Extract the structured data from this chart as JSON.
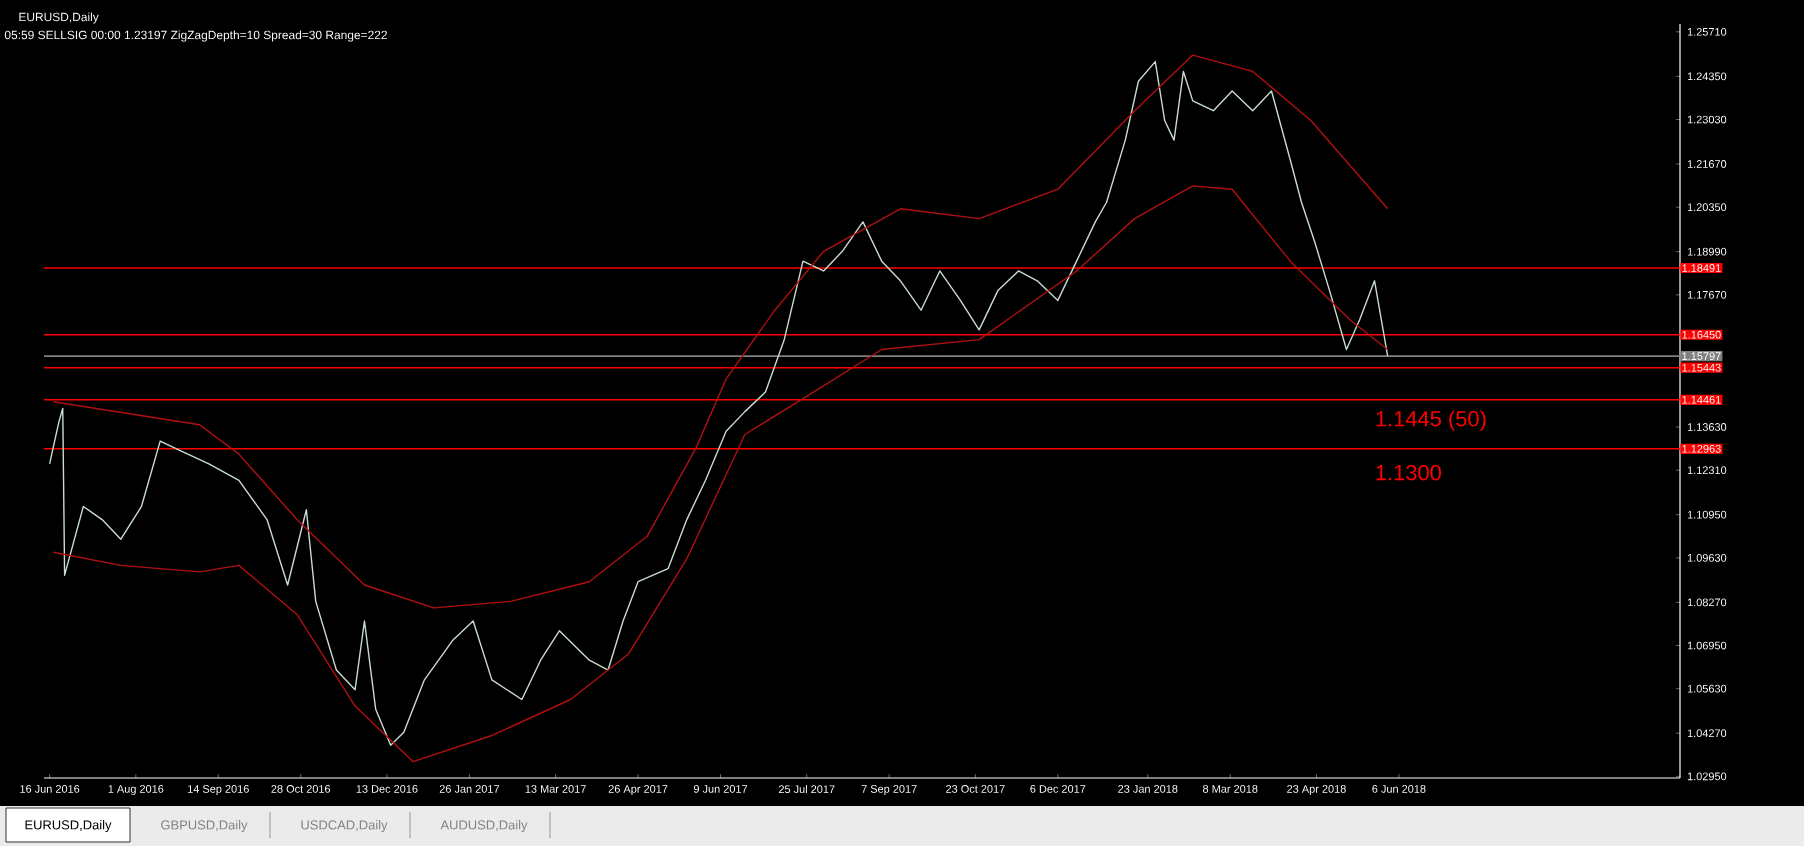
{
  "chart_data": {
    "type": "line",
    "title": "EURUSD,Daily",
    "subtitle": "05:59  SELLSIG  00:00  1.23197  ZigZagDepth=10  Spread=30  Range=222",
    "series": [
      {
        "color": "#c8dccf",
        "x": [
          "2016-06-16",
          "2016-06-21",
          "2016-06-23",
          "2016-06-24",
          "2016-07-04",
          "2016-07-14",
          "2016-07-24",
          "2016-08-04",
          "2016-08-14",
          "2016-08-25",
          "2016-09-09",
          "2016-09-25",
          "2016-10-10",
          "2016-10-21",
          "2016-10-31",
          "2016-11-05",
          "2016-11-16",
          "2016-11-26",
          "2016-12-01",
          "2016-12-07",
          "2016-12-15",
          "2016-12-22",
          "2017-01-02",
          "2017-01-17",
          "2017-01-28",
          "2017-02-07",
          "2017-02-23",
          "2017-03-05",
          "2017-03-15",
          "2017-03-31",
          "2017-04-10",
          "2017-04-18",
          "2017-04-26",
          "2017-05-12",
          "2017-05-22",
          "2017-06-01",
          "2017-06-12",
          "2017-06-22",
          "2017-07-03",
          "2017-07-13",
          "2017-07-23",
          "2017-08-03",
          "2017-08-13",
          "2017-08-24",
          "2017-09-03",
          "2017-09-13",
          "2017-09-24",
          "2017-10-04",
          "2017-10-15",
          "2017-10-25",
          "2017-11-04",
          "2017-11-15",
          "2017-11-25",
          "2017-12-06",
          "2017-12-16",
          "2017-12-26",
          "2018-01-01",
          "2018-01-11",
          "2018-01-18",
          "2018-01-27",
          "2018-02-01",
          "2018-02-06",
          "2018-02-11",
          "2018-02-16",
          "2018-02-27",
          "2018-03-09",
          "2018-03-20",
          "2018-03-30",
          "2018-04-09",
          "2018-04-15",
          "2018-04-22",
          "2018-04-30",
          "2018-05-09",
          "2018-05-16",
          "2018-05-24",
          "2018-05-31"
        ],
        "values": [
          1.125,
          1.138,
          1.142,
          1.091,
          1.112,
          1.108,
          1.102,
          1.112,
          1.132,
          1.129,
          1.125,
          1.12,
          1.108,
          1.088,
          1.111,
          1.083,
          1.062,
          1.056,
          1.077,
          1.05,
          1.039,
          1.043,
          1.059,
          1.071,
          1.077,
          1.059,
          1.053,
          1.065,
          1.074,
          1.065,
          1.062,
          1.077,
          1.089,
          1.093,
          1.108,
          1.12,
          1.135,
          1.141,
          1.147,
          1.163,
          1.187,
          1.184,
          1.19,
          1.199,
          1.187,
          1.181,
          1.172,
          1.184,
          1.175,
          1.166,
          1.178,
          1.184,
          1.181,
          1.175,
          1.187,
          1.199,
          1.205,
          1.224,
          1.242,
          1.248,
          1.23,
          1.224,
          1.245,
          1.236,
          1.233,
          1.239,
          1.233,
          1.239,
          1.218,
          1.205,
          1.193,
          1.178,
          1.16,
          1.169,
          1.181,
          1.158
        ]
      },
      {
        "color": "#b01010",
        "x": [
          "2016-06-18",
          "2016-09-04",
          "2016-09-25",
          "2016-10-26",
          "2016-12-01",
          "2017-01-07",
          "2017-02-17",
          "2017-03-31",
          "2017-05-01",
          "2017-05-27",
          "2017-06-12",
          "2017-07-08",
          "2017-08-03",
          "2017-09-13",
          "2017-10-25",
          "2017-12-06",
          "2018-01-16",
          "2018-02-16",
          "2018-03-20",
          "2018-04-20",
          "2018-05-31"
        ],
        "values": [
          1.144,
          1.137,
          1.128,
          1.108,
          1.088,
          1.081,
          1.083,
          1.089,
          1.103,
          1.13,
          1.151,
          1.172,
          1.19,
          1.203,
          1.2,
          1.209,
          1.233,
          1.25,
          1.245,
          1.23,
          1.203
        ]
      },
      {
        "color": "#b01010",
        "x": [
          "2016-06-18",
          "2016-07-24",
          "2016-09-04",
          "2016-09-25",
          "2016-10-26",
          "2016-11-26",
          "2016-12-27",
          "2017-02-07",
          "2017-03-21",
          "2017-04-21",
          "2017-05-22",
          "2017-06-22",
          "2017-07-23",
          "2017-09-03",
          "2017-10-25",
          "2017-12-16",
          "2018-01-16",
          "2018-02-16",
          "2018-03-09",
          "2018-04-09",
          "2018-05-11",
          "2018-05-31"
        ],
        "values": [
          1.098,
          1.094,
          1.092,
          1.094,
          1.079,
          1.051,
          1.034,
          1.042,
          1.053,
          1.067,
          1.096,
          1.134,
          1.145,
          1.16,
          1.163,
          1.184,
          1.2,
          1.21,
          1.209,
          1.187,
          1.169,
          1.16
        ]
      }
    ],
    "xlim": [
      "2016-06-13",
      "2018-11-03"
    ],
    "xticks": [
      {
        "value": "2016-06-16",
        "label": "16 Jun 2016"
      },
      {
        "value": "2016-08-01",
        "label": "1 Aug 2016"
      },
      {
        "value": "2016-09-14",
        "label": "14 Sep 2016"
      },
      {
        "value": "2016-10-28",
        "label": "28 Oct 2016"
      },
      {
        "value": "2016-12-13",
        "label": "13 Dec 2016"
      },
      {
        "value": "2017-01-26",
        "label": "26 Jan 2017"
      },
      {
        "value": "2017-03-13",
        "label": "13 Mar 2017"
      },
      {
        "value": "2017-04-26",
        "label": "26 Apr 2017"
      },
      {
        "value": "2017-06-09",
        "label": "9 Jun 2017"
      },
      {
        "value": "2017-07-25",
        "label": "25 Jul 2017"
      },
      {
        "value": "2017-09-07",
        "label": "7 Sep 2017"
      },
      {
        "value": "2017-10-23",
        "label": "23 Oct 2017"
      },
      {
        "value": "2017-12-06",
        "label": "6 Dec 2017"
      },
      {
        "value": "2018-01-23",
        "label": "23 Jan 2018"
      },
      {
        "value": "2018-03-08",
        "label": "8 Mar 2018"
      },
      {
        "value": "2018-04-23",
        "label": "23 Apr 2018"
      },
      {
        "value": "2018-06-06",
        "label": "6 Jun 2018"
      }
    ],
    "ylim": [
      1.029,
      1.2595
    ],
    "yticks": [
      {
        "value": 1.2571,
        "label": "1.25710"
      },
      {
        "value": 1.2435,
        "label": "1.24350"
      },
      {
        "value": 1.2303,
        "label": "1.23030"
      },
      {
        "value": 1.2167,
        "label": "1.21670"
      },
      {
        "value": 1.2035,
        "label": "1.20350"
      },
      {
        "value": 1.1899,
        "label": "1.18990"
      },
      {
        "value": 1.1767,
        "label": "1.17670"
      },
      {
        "value": 1.1363,
        "label": "1.13630"
      },
      {
        "value": 1.1231,
        "label": "1.12310"
      },
      {
        "value": 1.1095,
        "label": "1.10950"
      },
      {
        "value": 1.0963,
        "label": "1.09630"
      },
      {
        "value": 1.0827,
        "label": "1.08270"
      },
      {
        "value": 1.0695,
        "label": "1.06950"
      },
      {
        "value": 1.0563,
        "label": "1.05630"
      },
      {
        "value": 1.0427,
        "label": "1.04270"
      },
      {
        "value": 1.0295,
        "label": "1.02950"
      }
    ],
    "ref_lines": [
      {
        "axis": "y",
        "value": 1.18491,
        "label": "1.18491",
        "color": "#ff0000"
      },
      {
        "axis": "y",
        "value": 1.1645,
        "label": "1.16450",
        "color": "#ff0000"
      },
      {
        "axis": "y",
        "value": 1.15797,
        "label": "1.15797",
        "color": "#808080"
      },
      {
        "axis": "y",
        "value": 1.15443,
        "label": "1.15443",
        "color": "#ff0000"
      },
      {
        "axis": "y",
        "value": 1.14461,
        "label": "1.14461",
        "color": "#ff0000"
      },
      {
        "axis": "y",
        "value": 1.12963,
        "label": "1.12963",
        "color": "#ff0000"
      }
    ],
    "annotations": [
      "1.1445 (50)",
      "1.1300",
      "EURUSD,Daily",
      "GBPUSD,Daily",
      "USDCAD,Daily",
      "AUDUSD,Daily"
    ],
    "grid": false
  }
}
